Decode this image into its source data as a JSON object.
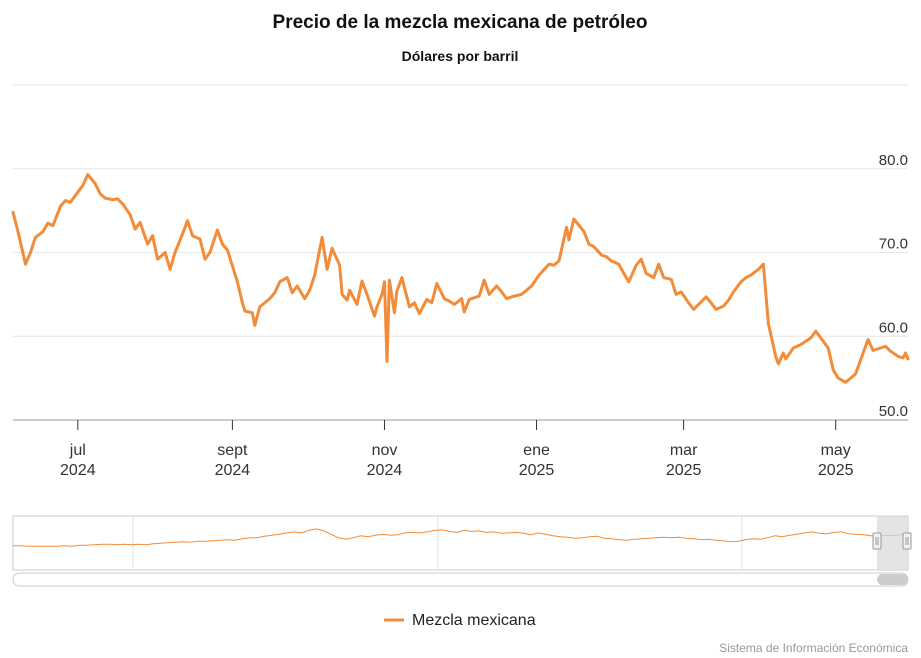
{
  "chart_data": {
    "type": "line",
    "title": "Precio de la mezcla mexicana de petróleo",
    "subtitle": "Dólares por barril",
    "ylim": [
      50,
      90
    ],
    "yticks": [
      "50.0",
      "60.0",
      "70.0",
      "80.0"
    ],
    "xticks": [
      {
        "month": "jul",
        "year": "2024",
        "date": "2024-07-01"
      },
      {
        "month": "sept",
        "year": "2024",
        "date": "2024-09-01"
      },
      {
        "month": "nov",
        "year": "2024",
        "date": "2024-11-01"
      },
      {
        "month": "ene",
        "year": "2025",
        "date": "2025-01-01"
      },
      {
        "month": "mar",
        "year": "2025",
        "date": "2025-03-01"
      },
      {
        "month": "may",
        "year": "2025",
        "date": "2025-05-01"
      }
    ],
    "grid": true,
    "legend_position": "bottom",
    "series": [
      {
        "name": "Mezcla mexicana",
        "color": "#f28c38",
        "points": [
          [
            "2024-06-05",
            74.8
          ],
          [
            "2024-06-07",
            72.5
          ],
          [
            "2024-06-10",
            68.6
          ],
          [
            "2024-06-12",
            70.0
          ],
          [
            "2024-06-14",
            71.8
          ],
          [
            "2024-06-17",
            72.5
          ],
          [
            "2024-06-19",
            73.5
          ],
          [
            "2024-06-21",
            73.2
          ],
          [
            "2024-06-24",
            75.5
          ],
          [
            "2024-06-26",
            76.2
          ],
          [
            "2024-06-28",
            76.0
          ],
          [
            "2024-07-01",
            77.2
          ],
          [
            "2024-07-03",
            78.0
          ],
          [
            "2024-07-05",
            79.3
          ],
          [
            "2024-07-08",
            78.2
          ],
          [
            "2024-07-10",
            77.0
          ],
          [
            "2024-07-12",
            76.5
          ],
          [
            "2024-07-15",
            76.3
          ],
          [
            "2024-07-17",
            76.4
          ],
          [
            "2024-07-19",
            75.8
          ],
          [
            "2024-07-22",
            74.5
          ],
          [
            "2024-07-24",
            72.8
          ],
          [
            "2024-07-26",
            73.6
          ],
          [
            "2024-07-29",
            71.0
          ],
          [
            "2024-07-31",
            72.0
          ],
          [
            "2024-08-02",
            69.2
          ],
          [
            "2024-08-05",
            70.0
          ],
          [
            "2024-08-07",
            68.0
          ],
          [
            "2024-08-09",
            70.0
          ],
          [
            "2024-08-12",
            72.2
          ],
          [
            "2024-08-14",
            73.8
          ],
          [
            "2024-08-16",
            72.0
          ],
          [
            "2024-08-19",
            71.6
          ],
          [
            "2024-08-21",
            69.2
          ],
          [
            "2024-08-23",
            70.0
          ],
          [
            "2024-08-26",
            72.7
          ],
          [
            "2024-08-28",
            71.0
          ],
          [
            "2024-08-30",
            70.3
          ],
          [
            "2024-09-03",
            66.5
          ],
          [
            "2024-09-05",
            64.0
          ],
          [
            "2024-09-06",
            63.0
          ],
          [
            "2024-09-09",
            62.8
          ],
          [
            "2024-09-10",
            61.3
          ],
          [
            "2024-09-12",
            63.5
          ],
          [
            "2024-09-16",
            64.5
          ],
          [
            "2024-09-18",
            65.2
          ],
          [
            "2024-09-20",
            66.5
          ],
          [
            "2024-09-23",
            67.0
          ],
          [
            "2024-09-25",
            65.2
          ],
          [
            "2024-09-27",
            66.0
          ],
          [
            "2024-09-30",
            64.5
          ],
          [
            "2024-10-02",
            65.5
          ],
          [
            "2024-10-04",
            67.3
          ],
          [
            "2024-10-07",
            71.8
          ],
          [
            "2024-10-09",
            68.0
          ],
          [
            "2024-10-11",
            70.5
          ],
          [
            "2024-10-14",
            68.5
          ],
          [
            "2024-10-15",
            65.0
          ],
          [
            "2024-10-17",
            64.3
          ],
          [
            "2024-10-18",
            65.5
          ],
          [
            "2024-10-21",
            63.8
          ],
          [
            "2024-10-23",
            66.6
          ],
          [
            "2024-10-25",
            65.0
          ],
          [
            "2024-10-28",
            62.4
          ],
          [
            "2024-10-29",
            63.5
          ],
          [
            "2024-10-31",
            65.0
          ],
          [
            "2024-11-01",
            66.5
          ],
          [
            "2024-11-02",
            57.0
          ],
          [
            "2024-11-03",
            66.7
          ],
          [
            "2024-11-05",
            62.8
          ],
          [
            "2024-11-06",
            65.4
          ],
          [
            "2024-11-08",
            67.0
          ],
          [
            "2024-11-11",
            63.5
          ],
          [
            "2024-11-13",
            64.0
          ],
          [
            "2024-11-15",
            62.7
          ],
          [
            "2024-11-18",
            64.4
          ],
          [
            "2024-11-20",
            64.0
          ],
          [
            "2024-11-22",
            66.3
          ],
          [
            "2024-11-25",
            64.5
          ],
          [
            "2024-11-27",
            64.2
          ],
          [
            "2024-11-29",
            63.8
          ],
          [
            "2024-12-02",
            64.5
          ],
          [
            "2024-12-03",
            62.9
          ],
          [
            "2024-12-05",
            64.4
          ],
          [
            "2024-12-09",
            64.8
          ],
          [
            "2024-12-11",
            66.7
          ],
          [
            "2024-12-13",
            65.0
          ],
          [
            "2024-12-16",
            66.0
          ],
          [
            "2024-12-18",
            65.3
          ],
          [
            "2024-12-20",
            64.5
          ],
          [
            "2024-12-23",
            64.8
          ],
          [
            "2024-12-26",
            65.0
          ],
          [
            "2024-12-30",
            66.0
          ],
          [
            "2025-01-02",
            67.3
          ],
          [
            "2025-01-06",
            68.6
          ],
          [
            "2025-01-08",
            68.5
          ],
          [
            "2025-01-10",
            69.0
          ],
          [
            "2025-01-13",
            73.0
          ],
          [
            "2025-01-14",
            71.5
          ],
          [
            "2025-01-16",
            74.0
          ],
          [
            "2025-01-20",
            72.5
          ],
          [
            "2025-01-22",
            71.0
          ],
          [
            "2025-01-24",
            70.7
          ],
          [
            "2025-01-27",
            69.7
          ],
          [
            "2025-01-29",
            69.5
          ],
          [
            "2025-01-31",
            69.0
          ],
          [
            "2025-02-03",
            68.6
          ],
          [
            "2025-02-05",
            67.5
          ],
          [
            "2025-02-07",
            66.5
          ],
          [
            "2025-02-10",
            68.5
          ],
          [
            "2025-02-12",
            69.2
          ],
          [
            "2025-02-14",
            67.5
          ],
          [
            "2025-02-17",
            67.0
          ],
          [
            "2025-02-19",
            68.6
          ],
          [
            "2025-02-21",
            67.0
          ],
          [
            "2025-02-24",
            66.8
          ],
          [
            "2025-02-26",
            65.0
          ],
          [
            "2025-02-28",
            65.3
          ],
          [
            "2025-03-03",
            64.0
          ],
          [
            "2025-03-05",
            63.2
          ],
          [
            "2025-03-07",
            63.8
          ],
          [
            "2025-03-10",
            64.7
          ],
          [
            "2025-03-12",
            64.0
          ],
          [
            "2025-03-14",
            63.2
          ],
          [
            "2025-03-17",
            63.6
          ],
          [
            "2025-03-19",
            64.3
          ],
          [
            "2025-03-21",
            65.3
          ],
          [
            "2025-03-24",
            66.5
          ],
          [
            "2025-03-26",
            67.0
          ],
          [
            "2025-03-28",
            67.3
          ],
          [
            "2025-03-31",
            68.0
          ],
          [
            "2025-04-02",
            68.6
          ],
          [
            "2025-04-04",
            61.5
          ],
          [
            "2025-04-07",
            57.5
          ],
          [
            "2025-04-08",
            56.7
          ],
          [
            "2025-04-10",
            58.0
          ],
          [
            "2025-04-11",
            57.3
          ],
          [
            "2025-04-14",
            58.6
          ],
          [
            "2025-04-17",
            59.0
          ],
          [
            "2025-04-21",
            59.8
          ],
          [
            "2025-04-23",
            60.6
          ],
          [
            "2025-04-25",
            59.8
          ],
          [
            "2025-04-28",
            58.6
          ],
          [
            "2025-04-30",
            56.0
          ],
          [
            "2025-05-02",
            55.0
          ],
          [
            "2025-05-05",
            54.5
          ],
          [
            "2025-05-07",
            55.0
          ],
          [
            "2025-05-09",
            55.5
          ],
          [
            "2025-05-12",
            58.0
          ],
          [
            "2025-05-14",
            59.6
          ],
          [
            "2025-05-16",
            58.3
          ],
          [
            "2025-05-19",
            58.6
          ],
          [
            "2025-05-21",
            58.8
          ],
          [
            "2025-05-23",
            58.2
          ],
          [
            "2025-05-26",
            57.6
          ],
          [
            "2025-05-28",
            57.4
          ],
          [
            "2025-05-29",
            58.0
          ],
          [
            "2025-05-30",
            57.3
          ]
        ]
      }
    ]
  },
  "navigator": {
    "line_color": "#f28c38",
    "mask_color": "#d9d9d9"
  },
  "legend": {
    "label": "Mezcla mexicana"
  },
  "credits": "Sistema de Información Económica"
}
